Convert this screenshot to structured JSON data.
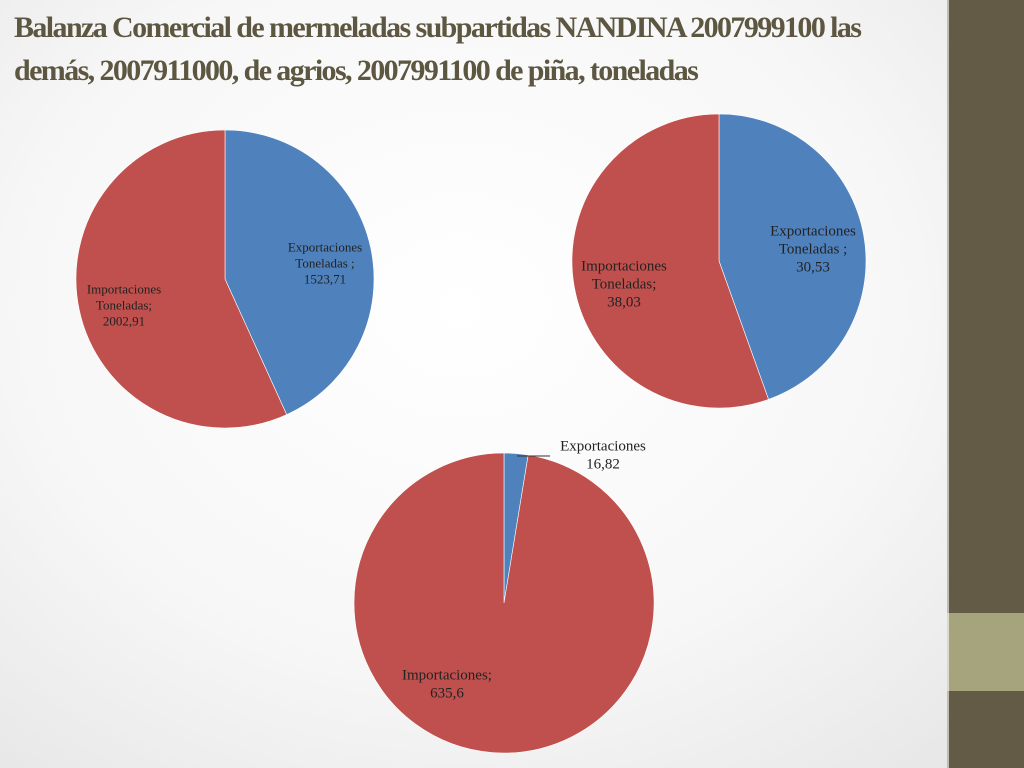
{
  "title": "Balanza Comercial de mermeladas subpartidas NANDINA 2007999100 las demás, 2007911000, de agrios, 2007991100 de piña, toneladas",
  "colors": {
    "exportaciones": "#4F81BD",
    "importaciones": "#C0504D",
    "title": "#5D5741",
    "sidebar_dark": "#635B46",
    "sidebar_light": "#A6A47D"
  },
  "chart_data": [
    {
      "type": "pie",
      "title": "",
      "slices": [
        {
          "name": "Exportaciones",
          "value": 1523.71,
          "label_lines": [
            "Exportaciones",
            "Toneladas ;",
            "1523,71"
          ]
        },
        {
          "name": "Importaciones",
          "value": 2002.91,
          "label_lines": [
            "Importaciones",
            "Toneladas;",
            "2002,91"
          ]
        }
      ]
    },
    {
      "type": "pie",
      "title": "",
      "slices": [
        {
          "name": "Exportaciones",
          "value": 30.53,
          "label_lines": [
            "Exportaciones",
            "Toneladas ;",
            "30,53"
          ]
        },
        {
          "name": "Importaciones",
          "value": 38.03,
          "label_lines": [
            "Importaciones",
            "Toneladas;",
            "38,03"
          ]
        }
      ]
    },
    {
      "type": "pie",
      "title": "",
      "slices": [
        {
          "name": "Exportaciones",
          "value": 16.82,
          "label_lines": [
            "Exportaciones",
            "16,82"
          ]
        },
        {
          "name": "Importaciones",
          "value": 635.6,
          "label_lines": [
            "Importaciones;",
            "635,6"
          ]
        }
      ]
    }
  ]
}
